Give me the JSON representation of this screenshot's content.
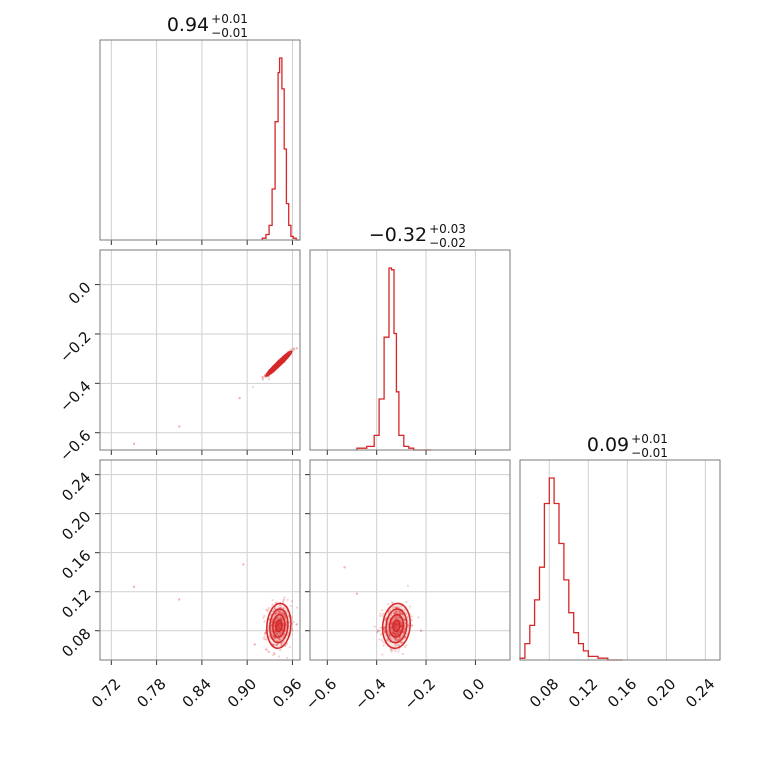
{
  "chart_data": {
    "type": "corner",
    "color": "#d62728",
    "grid": true,
    "titles": [
      {
        "value": "0.94",
        "plus": "+0.01",
        "minus": "−0.01"
      },
      {
        "value": "−0.32",
        "plus": "+0.03",
        "minus": "−0.02"
      },
      {
        "value": "0.09",
        "plus": "+0.01",
        "minus": "−0.01"
      }
    ],
    "parameters": [
      {
        "range": [
          0.705,
          0.97
        ],
        "ticks": [
          0.72,
          0.78,
          0.84,
          0.9,
          0.96
        ],
        "tick_labels": [
          "0.72",
          "0.78",
          "0.84",
          "0.90",
          "0.96"
        ]
      },
      {
        "range": [
          -0.67,
          0.14
        ],
        "ticks": [
          -0.6,
          -0.4,
          -0.2,
          0.0
        ],
        "tick_labels": [
          "−0.6",
          "−0.4",
          "−0.2",
          "0.0"
        ]
      },
      {
        "range": [
          0.05,
          0.255
        ],
        "ticks": [
          0.08,
          0.12,
          0.16,
          0.2,
          0.24
        ],
        "tick_labels": [
          "0.08",
          "0.12",
          "0.16",
          "0.20",
          "0.24"
        ]
      }
    ],
    "histograms": [
      {
        "edges": [
          0.92,
          0.925,
          0.929,
          0.933,
          0.937,
          0.941,
          0.943,
          0.946,
          0.949,
          0.952,
          0.955,
          0.958,
          0.961,
          0.965,
          0.97
        ],
        "counts": [
          1,
          3,
          8,
          28,
          65,
          92,
          100,
          83,
          50,
          20,
          8,
          2,
          1,
          0
        ]
      },
      {
        "edges": [
          -0.48,
          -0.44,
          -0.41,
          -0.39,
          -0.37,
          -0.35,
          -0.34,
          -0.33,
          -0.32,
          -0.31,
          -0.29,
          -0.27,
          -0.25,
          -0.22,
          -0.18
        ],
        "counts": [
          1,
          2,
          8,
          28,
          62,
          100,
          99,
          64,
          32,
          8,
          2,
          1,
          0,
          0
        ]
      },
      {
        "edges": [
          0.05,
          0.055,
          0.06,
          0.065,
          0.07,
          0.075,
          0.08,
          0.085,
          0.09,
          0.095,
          0.1,
          0.105,
          0.11,
          0.115,
          0.12,
          0.13,
          0.14,
          0.155
        ],
        "counts": [
          1,
          9,
          19,
          33,
          51,
          86,
          100,
          86,
          64,
          44,
          26,
          15,
          9,
          5,
          2,
          1,
          0
        ]
      }
    ],
    "pairs": [
      {
        "x": 0,
        "y": 1,
        "center": [
          0.942,
          -0.32
        ],
        "sd": [
          0.0085,
          0.025
        ],
        "corr": 0.97,
        "outliers": [
          [
            0.75,
            -0.645
          ],
          [
            0.81,
            -0.575
          ],
          [
            0.89,
            -0.46
          ]
        ]
      },
      {
        "x": 0,
        "y": 2,
        "center": [
          0.942,
          0.085
        ],
        "sd": [
          0.008,
          0.0115
        ],
        "corr": 0.1,
        "outliers": [
          [
            0.75,
            0.125
          ],
          [
            0.81,
            0.112
          ],
          [
            0.91,
            0.066
          ],
          [
            0.895,
            0.148
          ]
        ]
      },
      {
        "x": 1,
        "y": 2,
        "center": [
          -0.32,
          0.085
        ],
        "sd": [
          0.028,
          0.0115
        ],
        "corr": 0.1,
        "outliers": [
          [
            -0.48,
            0.118
          ],
          [
            -0.53,
            0.145
          ],
          [
            -0.22,
            0.08
          ]
        ]
      }
    ]
  }
}
